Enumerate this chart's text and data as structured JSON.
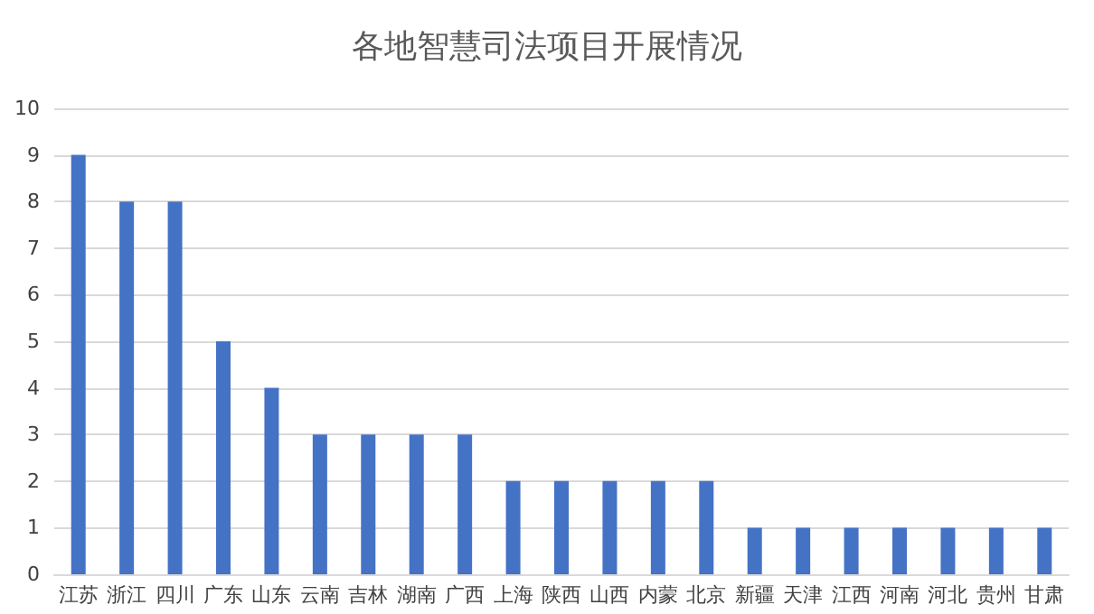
{
  "chart_data": {
    "type": "bar",
    "title": "各地智慧司法项目开展情况",
    "categories": [
      "江苏",
      "浙江",
      "四川",
      "广东",
      "山东",
      "云南",
      "吉林",
      "湖南",
      "广西",
      "上海",
      "陕西",
      "山西",
      "内蒙",
      "北京",
      "新疆",
      "天津",
      "江西",
      "河南",
      "河北",
      "贵州",
      "甘肃"
    ],
    "values": [
      9,
      8,
      8,
      5,
      4,
      3,
      3,
      3,
      3,
      2,
      2,
      2,
      2,
      2,
      1,
      1,
      1,
      1,
      1,
      1,
      1
    ],
    "color": "#4472c4",
    "ylim": [
      0,
      10
    ],
    "yticks": [
      0,
      1,
      2,
      3,
      4,
      5,
      6,
      7,
      8,
      9,
      10
    ],
    "grid": "y"
  }
}
